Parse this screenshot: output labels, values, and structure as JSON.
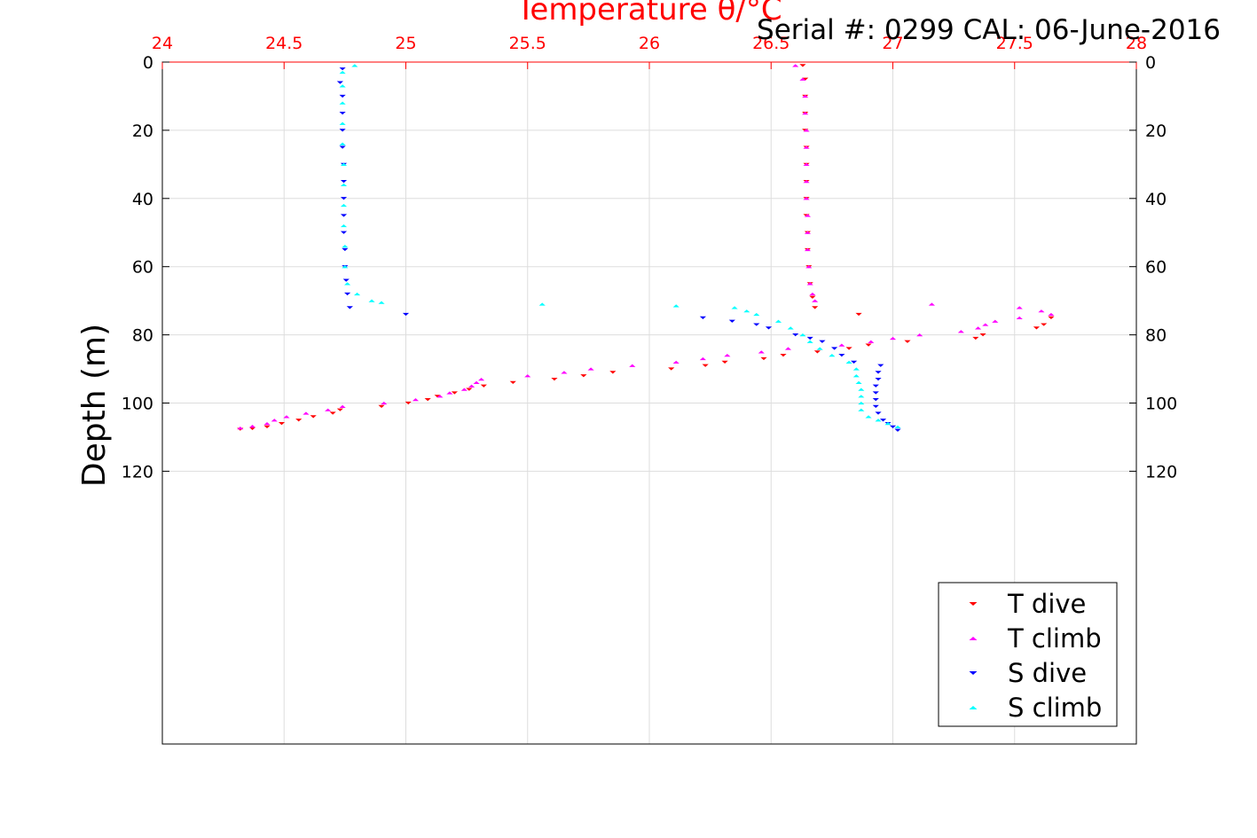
{
  "chart_data": {
    "type": "scatter",
    "title": "Temperature θ/°C",
    "serial_label": "Serial #: 0299 CAL: 06-June-2016",
    "xlabel": "Temperature θ/°C",
    "ylabel": "Depth (m)",
    "xlim": [
      24,
      28
    ],
    "ylim": [
      0,
      200
    ],
    "y_reversed": true,
    "grid": true,
    "legend_position": "bottom-right",
    "x_ticks": [
      "24",
      "24.5",
      "25",
      "25.5",
      "26",
      "26.5",
      "27",
      "27.5",
      "28"
    ],
    "y_ticks": [
      "0",
      "20",
      "40",
      "60",
      "80",
      "100",
      "120"
    ],
    "colors": {
      "t_dive": "#ff0000",
      "t_climb": "#ff00ff",
      "s_dive": "#0000ff",
      "s_climb": "#00ffff",
      "top_axis": "#ff0000",
      "grid": "#dddddd"
    },
    "series": [
      {
        "name": "T dive",
        "marker": "triangle-down",
        "color": "#ff0000",
        "points": [
          [
            26.63,
            1
          ],
          [
            26.64,
            5
          ],
          [
            26.64,
            10
          ],
          [
            26.64,
            15
          ],
          [
            26.64,
            20
          ],
          [
            26.645,
            25
          ],
          [
            26.645,
            30
          ],
          [
            26.645,
            35
          ],
          [
            26.645,
            40
          ],
          [
            26.645,
            45
          ],
          [
            26.65,
            50
          ],
          [
            26.65,
            55
          ],
          [
            26.655,
            60
          ],
          [
            26.66,
            65
          ],
          [
            26.67,
            69
          ],
          [
            26.68,
            72
          ],
          [
            26.86,
            74
          ],
          [
            27.65,
            75
          ],
          [
            27.62,
            77
          ],
          [
            27.59,
            78
          ],
          [
            27.37,
            80
          ],
          [
            27.34,
            81
          ],
          [
            27.06,
            82
          ],
          [
            26.9,
            83
          ],
          [
            26.82,
            84
          ],
          [
            26.69,
            85
          ],
          [
            26.55,
            86
          ],
          [
            26.47,
            87
          ],
          [
            26.31,
            88
          ],
          [
            26.23,
            89
          ],
          [
            26.09,
            90
          ],
          [
            25.85,
            91
          ],
          [
            25.73,
            92
          ],
          [
            25.61,
            93
          ],
          [
            25.44,
            94
          ],
          [
            25.32,
            95
          ],
          [
            25.26,
            96
          ],
          [
            25.2,
            97
          ],
          [
            25.13,
            98
          ],
          [
            25.09,
            99
          ],
          [
            25.01,
            100
          ],
          [
            24.9,
            101
          ],
          [
            24.73,
            102
          ],
          [
            24.7,
            103
          ],
          [
            24.62,
            104
          ],
          [
            24.56,
            105
          ],
          [
            24.49,
            106
          ],
          [
            24.43,
            107
          ],
          [
            24.37,
            107.5
          ],
          [
            24.32,
            107.7
          ]
        ]
      },
      {
        "name": "T climb",
        "marker": "triangle-up",
        "color": "#ff00ff",
        "points": [
          [
            26.6,
            1
          ],
          [
            26.63,
            5
          ],
          [
            26.64,
            10
          ],
          [
            26.64,
            15
          ],
          [
            26.645,
            20
          ],
          [
            26.645,
            25
          ],
          [
            26.645,
            30
          ],
          [
            26.645,
            35
          ],
          [
            26.645,
            40
          ],
          [
            26.65,
            45
          ],
          [
            26.65,
            50
          ],
          [
            26.65,
            55
          ],
          [
            26.655,
            60
          ],
          [
            26.66,
            65
          ],
          [
            26.67,
            68
          ],
          [
            26.68,
            70
          ],
          [
            27.16,
            71
          ],
          [
            27.52,
            72
          ],
          [
            27.61,
            73
          ],
          [
            27.65,
            74
          ],
          [
            27.52,
            75
          ],
          [
            27.42,
            76
          ],
          [
            27.38,
            77
          ],
          [
            27.35,
            78
          ],
          [
            27.28,
            79
          ],
          [
            27.11,
            80
          ],
          [
            27.0,
            81
          ],
          [
            26.91,
            82
          ],
          [
            26.79,
            83
          ],
          [
            26.57,
            84
          ],
          [
            26.46,
            85
          ],
          [
            26.32,
            86
          ],
          [
            26.22,
            87
          ],
          [
            26.11,
            88
          ],
          [
            25.93,
            89
          ],
          [
            25.76,
            90
          ],
          [
            25.65,
            91
          ],
          [
            25.5,
            92
          ],
          [
            25.31,
            93
          ],
          [
            25.29,
            94
          ],
          [
            25.27,
            95
          ],
          [
            25.24,
            96
          ],
          [
            25.18,
            97
          ],
          [
            25.14,
            98
          ],
          [
            25.04,
            99
          ],
          [
            24.91,
            100
          ],
          [
            24.74,
            101
          ],
          [
            24.68,
            102
          ],
          [
            24.59,
            103
          ],
          [
            24.51,
            104
          ],
          [
            24.46,
            105
          ],
          [
            24.43,
            106
          ],
          [
            24.37,
            106.8
          ],
          [
            24.32,
            107.3
          ]
        ]
      },
      {
        "name": "S dive",
        "marker": "triangle-down",
        "color": "#0000ff",
        "points": [
          [
            24.74,
            2
          ],
          [
            24.73,
            6
          ],
          [
            24.74,
            10
          ],
          [
            24.74,
            15
          ],
          [
            24.74,
            20
          ],
          [
            24.74,
            25
          ],
          [
            24.745,
            30
          ],
          [
            24.745,
            35
          ],
          [
            24.745,
            40
          ],
          [
            24.745,
            45
          ],
          [
            24.745,
            50
          ],
          [
            24.75,
            55
          ],
          [
            24.75,
            60
          ],
          [
            24.755,
            64
          ],
          [
            24.76,
            68
          ],
          [
            24.77,
            72
          ],
          [
            25.0,
            74
          ],
          [
            26.22,
            75
          ],
          [
            26.34,
            76
          ],
          [
            26.44,
            77
          ],
          [
            26.49,
            78
          ],
          [
            26.6,
            80
          ],
          [
            26.66,
            81
          ],
          [
            26.71,
            82
          ],
          [
            26.76,
            84
          ],
          [
            26.79,
            86
          ],
          [
            26.84,
            88
          ],
          [
            26.95,
            89
          ],
          [
            26.94,
            91
          ],
          [
            26.94,
            93
          ],
          [
            26.93,
            95
          ],
          [
            26.93,
            97
          ],
          [
            26.93,
            99
          ],
          [
            26.93,
            101
          ],
          [
            26.94,
            103
          ],
          [
            26.96,
            105
          ],
          [
            26.98,
            106
          ],
          [
            27.0,
            107
          ],
          [
            27.02,
            108
          ]
        ]
      },
      {
        "name": "S climb",
        "marker": "triangle-up",
        "color": "#00ffff",
        "points": [
          [
            24.79,
            1
          ],
          [
            24.74,
            3
          ],
          [
            24.74,
            7
          ],
          [
            24.74,
            12
          ],
          [
            24.74,
            18
          ],
          [
            24.74,
            24
          ],
          [
            24.745,
            30
          ],
          [
            24.745,
            36
          ],
          [
            24.745,
            42
          ],
          [
            24.745,
            48
          ],
          [
            24.75,
            54
          ],
          [
            24.75,
            60
          ],
          [
            24.76,
            65
          ],
          [
            24.8,
            68
          ],
          [
            24.86,
            70
          ],
          [
            24.9,
            70.5
          ],
          [
            25.56,
            71
          ],
          [
            26.11,
            71.5
          ],
          [
            26.35,
            72
          ],
          [
            26.4,
            73
          ],
          [
            26.44,
            74
          ],
          [
            26.53,
            76
          ],
          [
            26.58,
            78
          ],
          [
            26.63,
            80
          ],
          [
            26.66,
            82
          ],
          [
            26.7,
            84
          ],
          [
            26.75,
            86
          ],
          [
            26.82,
            88
          ],
          [
            26.85,
            90
          ],
          [
            26.85,
            92
          ],
          [
            26.86,
            94
          ],
          [
            26.87,
            96
          ],
          [
            26.87,
            98
          ],
          [
            26.87,
            100
          ],
          [
            26.87,
            102
          ],
          [
            26.9,
            104
          ],
          [
            26.94,
            105
          ],
          [
            26.98,
            106
          ],
          [
            27.02,
            107
          ]
        ]
      }
    ]
  }
}
